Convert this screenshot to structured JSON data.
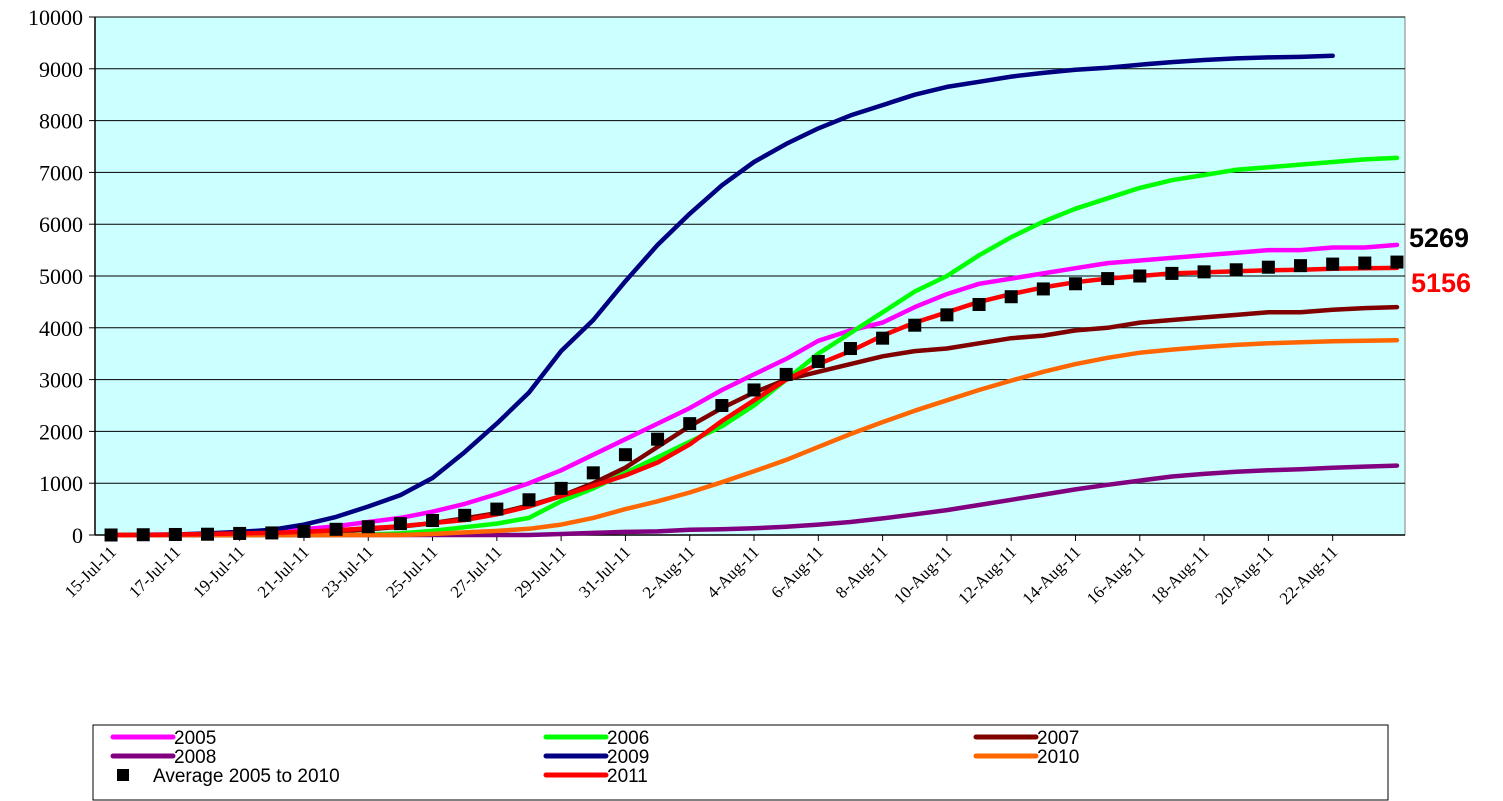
{
  "chart_data": {
    "type": "line",
    "title": "",
    "xlabel": "",
    "ylabel": "",
    "ylim": [
      0,
      10000
    ],
    "yticks": [
      0,
      1000,
      2000,
      3000,
      4000,
      5000,
      6000,
      7000,
      8000,
      9000,
      10000
    ],
    "x_tick_labels": [
      "15-Jul-11",
      "17-Jul-11",
      "19-Jul-11",
      "21-Jul-11",
      "23-Jul-11",
      "25-Jul-11",
      "27-Jul-11",
      "29-Jul-11",
      "31-Jul-11",
      "2-Aug-11",
      "4-Aug-11",
      "6-Aug-11",
      "8-Aug-11",
      "10-Aug-11",
      "12-Aug-11",
      "14-Aug-11",
      "16-Aug-11",
      "18-Aug-11",
      "20-Aug-11",
      "22-Aug-11"
    ],
    "x": [
      "15-Jul-11",
      "16-Jul-11",
      "17-Jul-11",
      "18-Jul-11",
      "19-Jul-11",
      "20-Jul-11",
      "21-Jul-11",
      "22-Jul-11",
      "23-Jul-11",
      "24-Jul-11",
      "25-Jul-11",
      "26-Jul-11",
      "27-Jul-11",
      "28-Jul-11",
      "29-Jul-11",
      "30-Jul-11",
      "31-Jul-11",
      "1-Aug-11",
      "2-Aug-11",
      "3-Aug-11",
      "4-Aug-11",
      "5-Aug-11",
      "6-Aug-11",
      "7-Aug-11",
      "8-Aug-11",
      "9-Aug-11",
      "10-Aug-11",
      "11-Aug-11",
      "12-Aug-11",
      "13-Aug-11",
      "14-Aug-11",
      "15-Aug-11",
      "16-Aug-11",
      "17-Aug-11",
      "18-Aug-11",
      "19-Aug-11",
      "20-Aug-11",
      "21-Aug-11",
      "22-Aug-11",
      "23-Aug-11",
      "24-Aug-11"
    ],
    "plot_background": "#ccffff",
    "grid": "horizontal",
    "legend_position": "bottom",
    "series": [
      {
        "name": "2005",
        "color": "#ff00ff",
        "values": [
          0,
          5,
          10,
          20,
          40,
          70,
          110,
          170,
          250,
          330,
          450,
          600,
          790,
          1000,
          1250,
          1550,
          1850,
          2150,
          2450,
          2800,
          3100,
          3400,
          3750,
          3950,
          4100,
          4400,
          4650,
          4850,
          4950,
          5050,
          5150,
          5250,
          5300,
          5350,
          5400,
          5450,
          5500,
          5500,
          5550,
          5550,
          5600
        ]
      },
      {
        "name": "2006",
        "color": "#00ff00",
        "values": [
          0,
          0,
          0,
          0,
          0,
          0,
          0,
          0,
          10,
          30,
          80,
          150,
          220,
          330,
          650,
          900,
          1200,
          1500,
          1800,
          2100,
          2500,
          3000,
          3500,
          3900,
          4300,
          4700,
          5000,
          5400,
          5750,
          6050,
          6300,
          6500,
          6700,
          6850,
          6950,
          7050,
          7100,
          7150,
          7200,
          7250,
          7280
        ]
      },
      {
        "name": "2007",
        "color": "#800000",
        "values": [
          0,
          0,
          0,
          0,
          0,
          20,
          40,
          70,
          110,
          160,
          230,
          320,
          420,
          570,
          750,
          1000,
          1300,
          1700,
          2100,
          2450,
          2750,
          3000,
          3150,
          3300,
          3450,
          3550,
          3600,
          3700,
          3800,
          3850,
          3950,
          4000,
          4100,
          4150,
          4200,
          4250,
          4300,
          4300,
          4350,
          4380,
          4400
        ]
      },
      {
        "name": "2008",
        "color": "#800080",
        "values": [
          0,
          0,
          0,
          0,
          0,
          0,
          0,
          0,
          0,
          0,
          0,
          0,
          0,
          0,
          20,
          40,
          60,
          70,
          100,
          110,
          130,
          160,
          200,
          250,
          320,
          400,
          480,
          580,
          680,
          780,
          880,
          970,
          1050,
          1130,
          1180,
          1220,
          1250,
          1270,
          1300,
          1320,
          1340
        ]
      },
      {
        "name": "2009",
        "color": "#000080",
        "values": [
          0,
          5,
          10,
          30,
          60,
          100,
          200,
          350,
          550,
          770,
          1100,
          1600,
          2150,
          2750,
          3550,
          4150,
          4900,
          5600,
          6200,
          6750,
          7200,
          7550,
          7850,
          8100,
          8300,
          8500,
          8650,
          8750,
          8850,
          8920,
          8980,
          9020,
          9080,
          9130,
          9170,
          9200,
          9220,
          9230,
          9250,
          null,
          null
        ]
      },
      {
        "name": "2010",
        "color": "#ff6600",
        "values": [
          0,
          0,
          0,
          0,
          0,
          0,
          0,
          0,
          0,
          0,
          20,
          50,
          80,
          120,
          200,
          330,
          500,
          650,
          820,
          1020,
          1230,
          1450,
          1700,
          1950,
          2180,
          2400,
          2600,
          2800,
          2980,
          3150,
          3300,
          3420,
          3520,
          3580,
          3630,
          3670,
          3700,
          3720,
          3740,
          3750,
          3760
        ]
      },
      {
        "name": "2011",
        "color": "#ff0000",
        "values": [
          0,
          0,
          10,
          20,
          30,
          40,
          60,
          90,
          130,
          170,
          230,
          290,
          400,
          550,
          750,
          950,
          1150,
          1400,
          1750,
          2200,
          2600,
          3000,
          3300,
          3550,
          3850,
          4100,
          4300,
          4500,
          4650,
          4780,
          4880,
          4950,
          5000,
          5050,
          5070,
          5090,
          5110,
          5120,
          5140,
          5150,
          5156
        ]
      }
    ],
    "average_series": {
      "name": "Average 2005 to 2010",
      "color": "#000000",
      "marker": "square",
      "values": [
        0,
        5,
        10,
        15,
        30,
        40,
        70,
        110,
        160,
        220,
        280,
        380,
        500,
        680,
        900,
        1200,
        1550,
        1850,
        2150,
        2500,
        2800,
        3100,
        3350,
        3600,
        3800,
        4050,
        4250,
        4450,
        4600,
        4750,
        4850,
        4950,
        5000,
        5050,
        5080,
        5120,
        5170,
        5200,
        5230,
        5250,
        5269
      ]
    },
    "annotations": [
      {
        "text": "5269",
        "color": "#000000"
      },
      {
        "text": "5156",
        "color": "#ff0000"
      }
    ],
    "legend": [
      {
        "label": "2005",
        "color": "#ff00ff",
        "kind": "line"
      },
      {
        "label": "2006",
        "color": "#00ff00",
        "kind": "line"
      },
      {
        "label": "2007",
        "color": "#800000",
        "kind": "line"
      },
      {
        "label": "2008",
        "color": "#800080",
        "kind": "line"
      },
      {
        "label": "2009",
        "color": "#000080",
        "kind": "line"
      },
      {
        "label": "2010",
        "color": "#ff6600",
        "kind": "line"
      },
      {
        "label": "Average 2005 to 2010",
        "color": "#000000",
        "kind": "square"
      },
      {
        "label": "2011",
        "color": "#ff0000",
        "kind": "line"
      }
    ]
  }
}
